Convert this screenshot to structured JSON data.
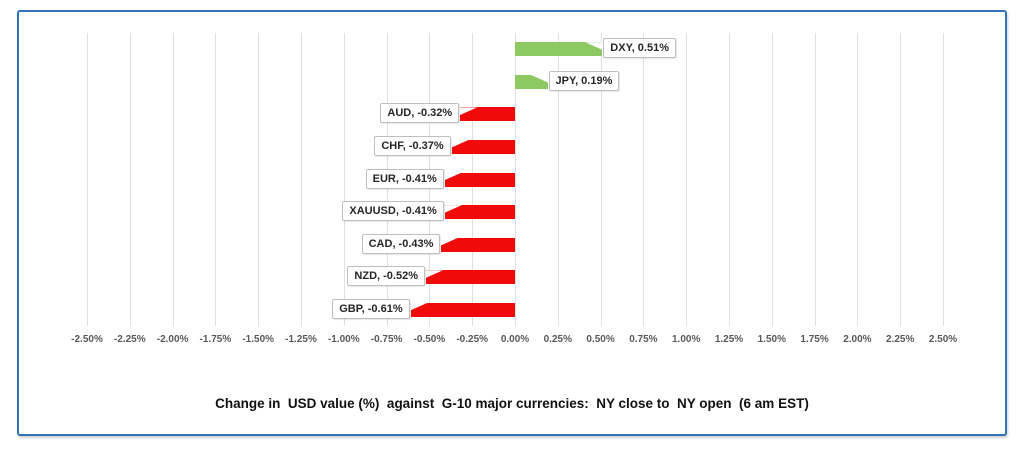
{
  "chart_data": {
    "type": "bar",
    "orientation": "horizontal",
    "title": "Change in  USD value (%)  against  G-10 major currencies:  NY close to  NY open  (6 am EST)",
    "categories": [
      "DXY",
      "JPY",
      "AUD",
      "CHF",
      "EUR",
      "XAUUSD",
      "CAD",
      "NZD",
      "GBP"
    ],
    "values": [
      0.51,
      0.19,
      -0.32,
      -0.37,
      -0.41,
      -0.41,
      -0.43,
      -0.52,
      -0.61
    ],
    "data_labels": [
      "DXY, 0.51%",
      "JPY, 0.19%",
      "AUD, -0.32%",
      "CHF, -0.37%",
      "EUR, -0.41%",
      "XAUUSD, -0.41%",
      "CAD, -0.43%",
      "NZD, -0.52%",
      "GBP, -0.61%"
    ],
    "xlim": [
      -2.5,
      2.5
    ],
    "tick_step": 0.25,
    "tick_labels": [
      "-2.50%",
      "-2.25%",
      "-2.00%",
      "-1.75%",
      "-1.50%",
      "-1.25%",
      "-1.00%",
      "-0.75%",
      "-0.50%",
      "-0.25%",
      "0.00%",
      "0.25%",
      "0.50%",
      "0.75%",
      "1.00%",
      "1.25%",
      "1.50%",
      "1.75%",
      "2.00%",
      "2.25%",
      "2.50%"
    ],
    "grid": true,
    "legend": false,
    "colors": {
      "positive_bar": "#8cc962",
      "negative_bar": "#f00a0a",
      "gridline": "#e0e0e0",
      "tick_text": "#595959",
      "frame_border": "#2e75b6",
      "callout_border": "#bfbfbf",
      "callout_bg": "#ffffff"
    }
  }
}
